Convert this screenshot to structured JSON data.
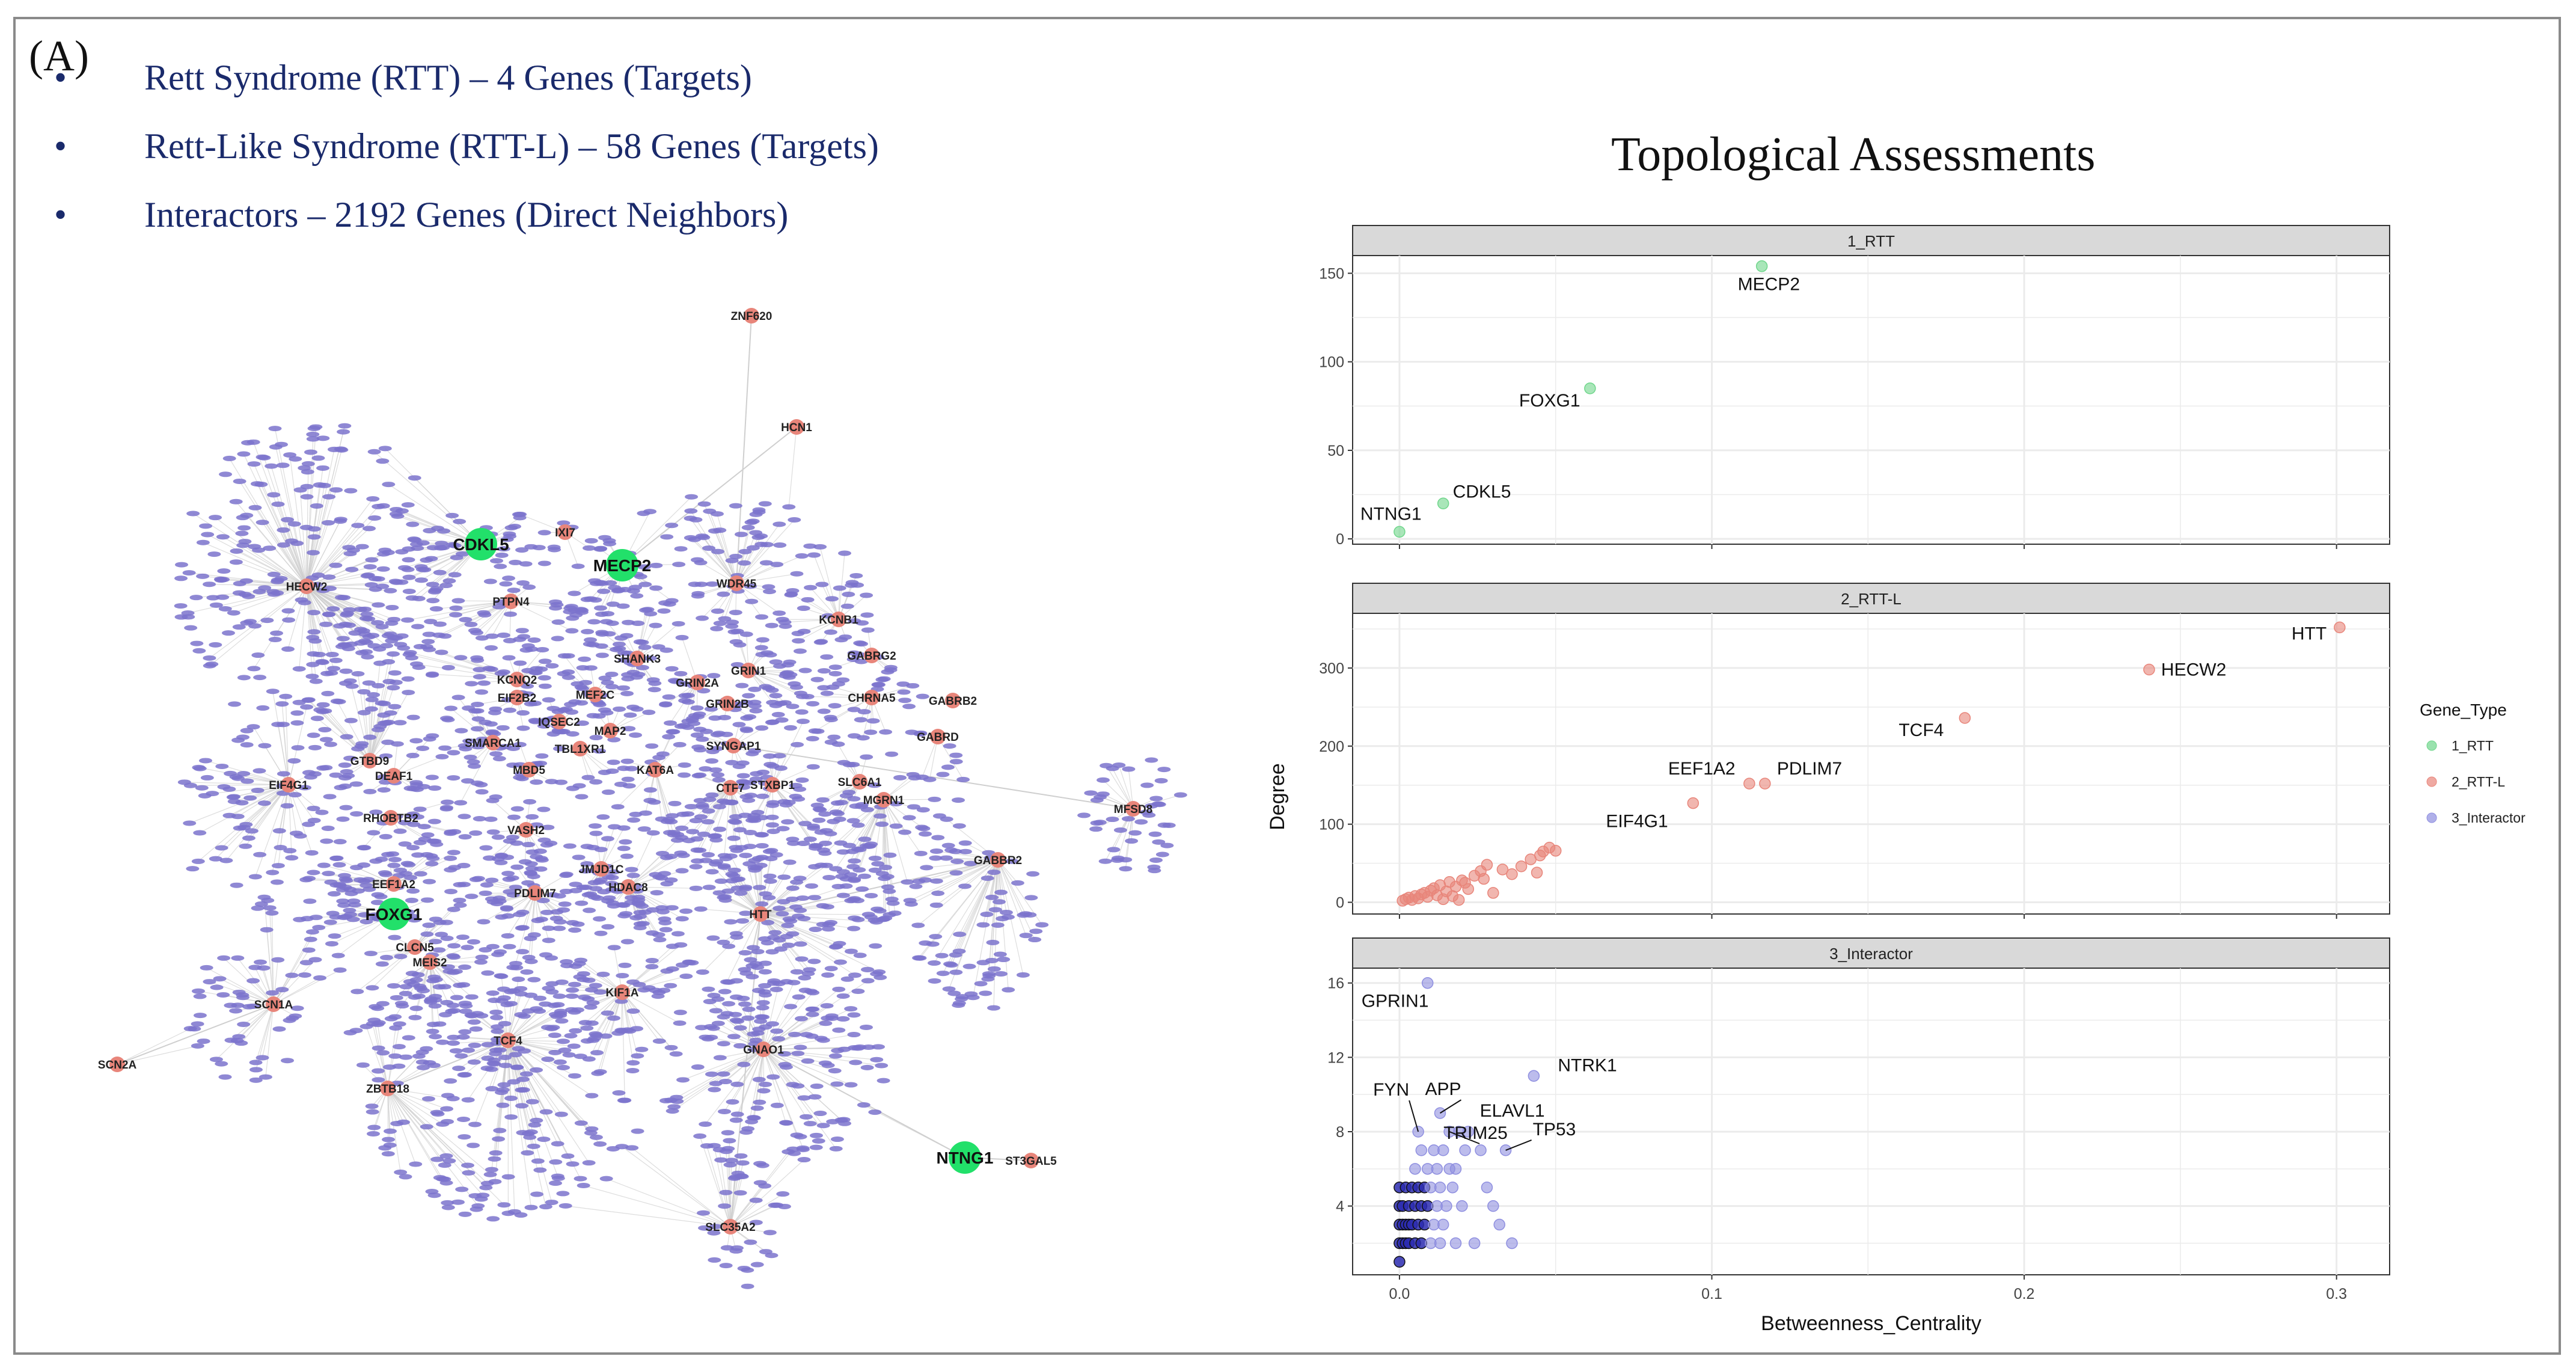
{
  "panel_label": "(A)",
  "bullets": [
    "Rett Syndrome (RTT) – 4 Genes (Targets)",
    "Rett-Like Syndrome (RTT-L) – 58 Genes (Targets)",
    "Interactors – 2192 Genes (Direct Neighbors)"
  ],
  "network": {
    "title": "",
    "target_color": "#22e06a",
    "rttl_color": "#e8857a",
    "interactor_color": "#7b73cc",
    "edge_color": "#cfcfcf",
    "rtt_genes": [
      "CDKL5",
      "MECP2",
      "FOXG1",
      "NTNG1"
    ],
    "rttl_genes": [
      "ZNF620",
      "HCN1",
      "HECW2",
      "IXI7",
      "PTPN4",
      "WDR45",
      "KCNB1",
      "SHANK3",
      "GABRG2",
      "CHRNA5",
      "KCNQ2",
      "MEF2C",
      "GRIN2A",
      "GRIN1",
      "EIF2B2",
      "GABRB2",
      "GRIN2B",
      "IQSEC2",
      "MAP2",
      "GABRD",
      "SMARCA1",
      "TBL1XR1",
      "SYNGAP1",
      "STXBP1",
      "SLC6A1",
      "MBD5",
      "GTBD9",
      "DEAF1",
      "EIF4G1",
      "KAT6A",
      "CTF7",
      "MGRN1",
      "RHOBTB2",
      "MFSD8",
      "VASH2",
      "JMJD1C",
      "GABBR2",
      "EEF1A2",
      "HDAC8",
      "PDLIM7",
      "HTT",
      "CLCN5",
      "MEIS2",
      "KIF1A",
      "SCN1A",
      "GNAO1",
      "TCF4",
      "SCN2A",
      "ZBTB18",
      "ST3GAL5",
      "SLC35A2"
    ]
  },
  "chart_title": "Topological Assessments",
  "chart_data": {
    "type": "scatter",
    "title": "Topological Assessments",
    "xlabel": "Betweenness_Centrality",
    "ylabel": "Degree",
    "xlim": [
      -0.015,
      0.317
    ],
    "x_ticks": [
      0.0,
      0.1,
      0.2,
      0.3
    ],
    "x_tick_labels": [
      "0.0",
      "0.1",
      "0.2",
      "0.3"
    ],
    "legend": {
      "title": "Gene_Type",
      "position": "right",
      "entries": [
        {
          "label": "1_RTT",
          "color": "#6fd68b"
        },
        {
          "label": "2_RTT-L",
          "color": "#e8857a"
        },
        {
          "label": "3_Interactor",
          "color": "#8f8fe0"
        }
      ]
    },
    "facets": [
      {
        "label": "1_RTT",
        "color": "#6fd68b",
        "ylim": [
          -3,
          160
        ],
        "y_ticks": [
          0,
          50,
          100,
          150
        ],
        "points": [
          {
            "x": 0.0,
            "y": 4,
            "label": "NTNG1"
          },
          {
            "x": 0.014,
            "y": 20,
            "label": "CDKL5"
          },
          {
            "x": 0.061,
            "y": 85,
            "label": "FOXG1"
          },
          {
            "x": 0.116,
            "y": 154,
            "label": "MECP2"
          }
        ]
      },
      {
        "label": "2_RTT-L",
        "color": "#e8857a",
        "ylim": [
          -15,
          370
        ],
        "y_ticks": [
          0,
          100,
          200,
          300
        ],
        "points": [
          {
            "x": 0.301,
            "y": 352,
            "label": "HTT"
          },
          {
            "x": 0.24,
            "y": 298,
            "label": "HECW2"
          },
          {
            "x": 0.181,
            "y": 236,
            "label": "TCF4"
          },
          {
            "x": 0.112,
            "y": 152,
            "label": "EEF1A2"
          },
          {
            "x": 0.117,
            "y": 152,
            "label": "PDLIM7"
          },
          {
            "x": 0.094,
            "y": 127,
            "label": "EIF4G1"
          },
          {
            "x": 0.001,
            "y": 2
          },
          {
            "x": 0.002,
            "y": 4
          },
          {
            "x": 0.003,
            "y": 6
          },
          {
            "x": 0.004,
            "y": 3
          },
          {
            "x": 0.005,
            "y": 8
          },
          {
            "x": 0.006,
            "y": 5
          },
          {
            "x": 0.007,
            "y": 10
          },
          {
            "x": 0.008,
            "y": 12
          },
          {
            "x": 0.009,
            "y": 7
          },
          {
            "x": 0.01,
            "y": 15
          },
          {
            "x": 0.011,
            "y": 18
          },
          {
            "x": 0.012,
            "y": 9
          },
          {
            "x": 0.013,
            "y": 22
          },
          {
            "x": 0.015,
            "y": 14
          },
          {
            "x": 0.016,
            "y": 26
          },
          {
            "x": 0.018,
            "y": 20
          },
          {
            "x": 0.02,
            "y": 28
          },
          {
            "x": 0.022,
            "y": 17
          },
          {
            "x": 0.024,
            "y": 34
          },
          {
            "x": 0.026,
            "y": 40
          },
          {
            "x": 0.027,
            "y": 30
          },
          {
            "x": 0.028,
            "y": 48
          },
          {
            "x": 0.03,
            "y": 12
          },
          {
            "x": 0.033,
            "y": 42
          },
          {
            "x": 0.036,
            "y": 36
          },
          {
            "x": 0.039,
            "y": 46
          },
          {
            "x": 0.042,
            "y": 55
          },
          {
            "x": 0.044,
            "y": 38
          },
          {
            "x": 0.045,
            "y": 60
          },
          {
            "x": 0.046,
            "y": 65
          },
          {
            "x": 0.048,
            "y": 70
          },
          {
            "x": 0.05,
            "y": 66
          },
          {
            "x": 0.014,
            "y": 4
          },
          {
            "x": 0.017,
            "y": 8
          },
          {
            "x": 0.019,
            "y": 3
          },
          {
            "x": 0.021,
            "y": 25
          }
        ]
      },
      {
        "label": "3_Interactor",
        "color": "#8f8fe0",
        "ylim": [
          0.3,
          16.8
        ],
        "y_ticks": [
          4,
          8,
          12,
          16
        ],
        "points": [
          {
            "x": 0.009,
            "y": 16,
            "label": "GPRIN1"
          },
          {
            "x": 0.043,
            "y": 11,
            "label": "NTRK1"
          },
          {
            "x": 0.006,
            "y": 8,
            "label": "FYN"
          },
          {
            "x": 0.013,
            "y": 9,
            "label": "APP"
          },
          {
            "x": 0.019,
            "y": 8,
            "label": "ELAVL1"
          },
          {
            "x": 0.016,
            "y": 8,
            "label": "TRIM25"
          },
          {
            "x": 0.034,
            "y": 7,
            "label": "TP53"
          },
          {
            "x": 0.0,
            "y": 1
          },
          {
            "x": 0.0,
            "y": 2
          },
          {
            "x": 0.0,
            "y": 3
          },
          {
            "x": 0.0,
            "y": 4
          },
          {
            "x": 0.0,
            "y": 5
          },
          {
            "x": 0.001,
            "y": 2
          },
          {
            "x": 0.001,
            "y": 3
          },
          {
            "x": 0.001,
            "y": 4
          },
          {
            "x": 0.002,
            "y": 2
          },
          {
            "x": 0.002,
            "y": 3
          },
          {
            "x": 0.002,
            "y": 5
          },
          {
            "x": 0.003,
            "y": 3
          },
          {
            "x": 0.003,
            "y": 4
          },
          {
            "x": 0.003,
            "y": 2
          },
          {
            "x": 0.004,
            "y": 3
          },
          {
            "x": 0.004,
            "y": 5
          },
          {
            "x": 0.005,
            "y": 2
          },
          {
            "x": 0.005,
            "y": 4
          },
          {
            "x": 0.005,
            "y": 6
          },
          {
            "x": 0.006,
            "y": 3
          },
          {
            "x": 0.006,
            "y": 5
          },
          {
            "x": 0.007,
            "y": 2
          },
          {
            "x": 0.007,
            "y": 4
          },
          {
            "x": 0.007,
            "y": 7
          },
          {
            "x": 0.008,
            "y": 3
          },
          {
            "x": 0.008,
            "y": 5
          },
          {
            "x": 0.009,
            "y": 4
          },
          {
            "x": 0.009,
            "y": 6
          },
          {
            "x": 0.01,
            "y": 2
          },
          {
            "x": 0.01,
            "y": 5
          },
          {
            "x": 0.011,
            "y": 3
          },
          {
            "x": 0.011,
            "y": 7
          },
          {
            "x": 0.012,
            "y": 4
          },
          {
            "x": 0.012,
            "y": 6
          },
          {
            "x": 0.013,
            "y": 2
          },
          {
            "x": 0.013,
            "y": 5
          },
          {
            "x": 0.014,
            "y": 3
          },
          {
            "x": 0.014,
            "y": 7
          },
          {
            "x": 0.015,
            "y": 4
          },
          {
            "x": 0.016,
            "y": 6
          },
          {
            "x": 0.017,
            "y": 5
          },
          {
            "x": 0.018,
            "y": 2
          },
          {
            "x": 0.018,
            "y": 6
          },
          {
            "x": 0.02,
            "y": 4
          },
          {
            "x": 0.021,
            "y": 7
          },
          {
            "x": 0.022,
            "y": 8
          },
          {
            "x": 0.024,
            "y": 2
          },
          {
            "x": 0.026,
            "y": 7
          },
          {
            "x": 0.028,
            "y": 5
          },
          {
            "x": 0.03,
            "y": 4
          },
          {
            "x": 0.032,
            "y": 3
          },
          {
            "x": 0.036,
            "y": 2
          }
        ]
      }
    ]
  }
}
